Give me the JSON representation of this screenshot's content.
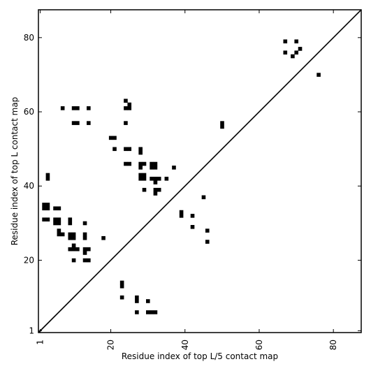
{
  "chart_data": {
    "type": "heatmap",
    "xlabel": "Residue index of top L/5 contact map",
    "ylabel": "Residue index of top L contact map",
    "xlim": [
      0.5,
      87.5
    ],
    "ylim": [
      0.5,
      87.5
    ],
    "xticks": [
      1,
      20,
      40,
      60,
      80
    ],
    "yticks": [
      1,
      20,
      40,
      60,
      80
    ],
    "grid": false,
    "diagonal_line": true,
    "cell_color": "#000000",
    "contacts": [
      [
        2,
        31
      ],
      [
        2,
        34
      ],
      [
        2,
        35
      ],
      [
        3,
        31
      ],
      [
        3,
        34
      ],
      [
        3,
        35
      ],
      [
        3,
        42
      ],
      [
        3,
        43
      ],
      [
        5,
        30
      ],
      [
        5,
        31
      ],
      [
        5,
        34
      ],
      [
        6,
        27
      ],
      [
        6,
        28
      ],
      [
        6,
        30
      ],
      [
        6,
        31
      ],
      [
        6,
        34
      ],
      [
        7,
        27
      ],
      [
        7,
        61
      ],
      [
        9,
        23
      ],
      [
        9,
        26
      ],
      [
        9,
        27
      ],
      [
        9,
        30
      ],
      [
        9,
        31
      ],
      [
        10,
        20
      ],
      [
        10,
        23
      ],
      [
        10,
        24
      ],
      [
        10,
        26
      ],
      [
        10,
        27
      ],
      [
        10,
        57
      ],
      [
        10,
        61
      ],
      [
        11,
        23
      ],
      [
        11,
        57
      ],
      [
        11,
        61
      ],
      [
        13,
        20
      ],
      [
        13,
        22
      ],
      [
        13,
        23
      ],
      [
        13,
        26
      ],
      [
        13,
        27
      ],
      [
        13,
        30
      ],
      [
        14,
        20
      ],
      [
        14,
        23
      ],
      [
        14,
        57
      ],
      [
        14,
        61
      ],
      [
        18,
        26
      ],
      [
        20,
        53
      ],
      [
        21,
        50
      ],
      [
        21,
        53
      ],
      [
        23,
        10
      ],
      [
        23,
        13
      ],
      [
        23,
        14
      ],
      [
        24,
        46
      ],
      [
        24,
        50
      ],
      [
        24,
        57
      ],
      [
        24,
        61
      ],
      [
        24,
        63
      ],
      [
        25,
        46
      ],
      [
        25,
        50
      ],
      [
        25,
        61
      ],
      [
        25,
        62
      ],
      [
        27,
        6
      ],
      [
        27,
        9
      ],
      [
        27,
        10
      ],
      [
        28,
        42
      ],
      [
        28,
        43
      ],
      [
        28,
        45
      ],
      [
        28,
        46
      ],
      [
        28,
        49
      ],
      [
        28,
        50
      ],
      [
        29,
        39
      ],
      [
        29,
        42
      ],
      [
        29,
        43
      ],
      [
        29,
        46
      ],
      [
        30,
        6
      ],
      [
        30,
        9
      ],
      [
        31,
        6
      ],
      [
        31,
        42
      ],
      [
        31,
        45
      ],
      [
        31,
        46
      ],
      [
        32,
        6
      ],
      [
        32,
        38
      ],
      [
        32,
        39
      ],
      [
        32,
        41
      ],
      [
        32,
        42
      ],
      [
        32,
        45
      ],
      [
        32,
        46
      ],
      [
        33,
        39
      ],
      [
        33,
        42
      ],
      [
        35,
        42
      ],
      [
        37,
        45
      ],
      [
        39,
        32
      ],
      [
        39,
        33
      ],
      [
        42,
        29
      ],
      [
        42,
        32
      ],
      [
        45,
        37
      ],
      [
        46,
        25
      ],
      [
        46,
        28
      ],
      [
        50,
        56
      ],
      [
        50,
        57
      ],
      [
        67,
        76
      ],
      [
        67,
        79
      ],
      [
        69,
        75
      ],
      [
        70,
        76
      ],
      [
        70,
        79
      ],
      [
        71,
        77
      ],
      [
        76,
        70
      ]
    ]
  }
}
